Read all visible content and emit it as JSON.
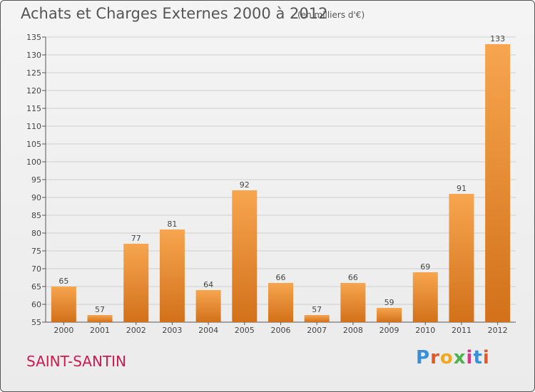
{
  "header": {
    "title": "Achats et Charges Externes 2000 à 2012",
    "unit": "(en milliers d'€)"
  },
  "footer": {
    "commune": "SAINT-SANTIN",
    "brand": "Proxiti",
    "brand_colors": [
      "#3a8fd8",
      "#e05a2a",
      "#f2a81d",
      "#4db34d",
      "#d03a8a",
      "#3a8fd8",
      "#e05a2a"
    ]
  },
  "colors": {
    "bar_light": "#f7a54f",
    "bar_dark": "#d2711a",
    "grid": "#cfcfcf",
    "axis": "#555555",
    "text": "#444444"
  },
  "chart_data": {
    "type": "bar",
    "title": "Achats et Charges Externes 2000 à 2012",
    "categories": [
      "2000",
      "2001",
      "2002",
      "2003",
      "2004",
      "2005",
      "2006",
      "2007",
      "2008",
      "2009",
      "2010",
      "2011",
      "2012"
    ],
    "values": [
      65,
      57,
      77,
      81,
      64,
      92,
      66,
      57,
      66,
      59,
      69,
      91,
      133
    ],
    "ylim": [
      55,
      135
    ],
    "yticks": [
      55,
      60,
      65,
      70,
      75,
      80,
      85,
      90,
      95,
      100,
      105,
      110,
      115,
      120,
      125,
      130,
      135
    ],
    "grid": true,
    "legend": "none"
  }
}
